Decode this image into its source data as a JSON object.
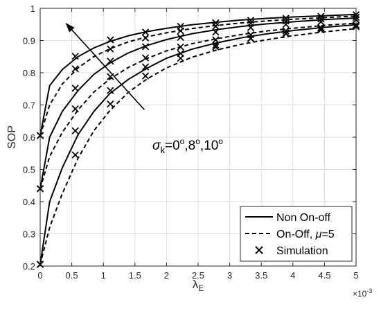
{
  "chart_data": {
    "type": "line",
    "xlabel": "λ",
    "xlabel_sub": "E",
    "ylabel": "SOP",
    "x_exponent": "×10",
    "x_exponent_power": "-3",
    "xlim": [
      0,
      5
    ],
    "ylim": [
      0.2,
      1
    ],
    "xticks": [
      0,
      0.5,
      1,
      1.5,
      2,
      2.5,
      3,
      3.5,
      4,
      4.5,
      5
    ],
    "xtick_labels": [
      "0",
      "0.5",
      "1",
      "1.5",
      "2",
      "2.5",
      "3",
      "3.5",
      "4",
      "4.5",
      "5"
    ],
    "yticks": [
      0.2,
      0.3,
      0.4,
      0.5,
      0.6,
      0.7,
      0.8,
      0.9,
      1
    ],
    "ytick_labels": [
      "0.2",
      "0.3",
      "0.4",
      "0.5",
      "0.6",
      "0.7",
      "0.8",
      "0.9",
      "1"
    ],
    "grid": true,
    "legend_position": "bottom-right",
    "legend": [
      {
        "label": "Non On-off",
        "style": "solid"
      },
      {
        "label": "On-Off, ",
        "label_math": "μ",
        "label_tail": "=5",
        "style": "dashed"
      },
      {
        "label": "Simulation",
        "style": "marker"
      }
    ],
    "annotation": {
      "sigma": "σ",
      "sub": "k",
      "text_parts": [
        "=0",
        "o",
        ",8",
        "o",
        ",10",
        "o"
      ],
      "arrow_from": [
        1.65,
        0.685
      ],
      "arrow_to": [
        0.4,
        0.955
      ]
    },
    "marker_x": [
      0,
      0.556,
      1.111,
      1.667,
      2.222,
      2.778,
      3.333,
      3.889,
      4.444,
      5
    ],
    "series": [
      {
        "style": "solid",
        "x": [
          0,
          0.15,
          0.35,
          0.6,
          0.85,
          1.1,
          1.4,
          1.7,
          2.0,
          2.4,
          2.8,
          3.2,
          3.6,
          4.0,
          4.5,
          5
        ],
        "y": [
          0.605,
          0.76,
          0.81,
          0.85,
          0.877,
          0.897,
          0.915,
          0.928,
          0.938,
          0.949,
          0.957,
          0.964,
          0.969,
          0.973,
          0.977,
          0.981
        ],
        "marker_y": [
          0.605,
          0.851,
          0.902,
          0.926,
          0.944,
          0.955,
          0.963,
          0.969,
          0.975,
          0.98
        ]
      },
      {
        "style": "dashed",
        "x": [
          0,
          0.15,
          0.35,
          0.6,
          0.85,
          1.1,
          1.4,
          1.7,
          2.0,
          2.4,
          2.8,
          3.2,
          3.6,
          4.0,
          4.5,
          5
        ],
        "y": [
          0.605,
          0.7,
          0.765,
          0.815,
          0.85,
          0.874,
          0.896,
          0.912,
          0.924,
          0.937,
          0.947,
          0.955,
          0.961,
          0.966,
          0.971,
          0.976
        ],
        "marker_y": [
          0.605,
          0.812,
          0.874,
          0.908,
          0.93,
          0.944,
          0.954,
          0.961,
          0.967,
          0.972
        ]
      },
      {
        "style": "solid",
        "x": [
          0,
          0.15,
          0.35,
          0.6,
          0.85,
          1.1,
          1.4,
          1.7,
          2.0,
          2.4,
          2.8,
          3.2,
          3.6,
          4.0,
          4.5,
          5
        ],
        "y": [
          0.44,
          0.6,
          0.68,
          0.745,
          0.795,
          0.83,
          0.862,
          0.885,
          0.903,
          0.921,
          0.934,
          0.944,
          0.952,
          0.958,
          0.965,
          0.97
        ],
        "marker_y": [
          0.44,
          0.752,
          0.836,
          0.881,
          0.91,
          0.926,
          0.94,
          0.95,
          0.958,
          0.965
        ]
      },
      {
        "style": "dashed",
        "x": [
          0,
          0.15,
          0.35,
          0.6,
          0.85,
          1.1,
          1.4,
          1.7,
          2.0,
          2.4,
          2.8,
          3.2,
          3.6,
          4.0,
          4.5,
          5
        ],
        "y": [
          0.44,
          0.54,
          0.615,
          0.685,
          0.74,
          0.78,
          0.817,
          0.845,
          0.868,
          0.89,
          0.906,
          0.919,
          0.93,
          0.938,
          0.947,
          0.954
        ],
        "marker_y": [
          0.44,
          0.688,
          0.788,
          0.846,
          0.88,
          0.902,
          0.918,
          0.93,
          0.94,
          0.948
        ]
      },
      {
        "style": "solid",
        "x": [
          0,
          0.15,
          0.35,
          0.6,
          0.85,
          1.1,
          1.4,
          1.7,
          2.0,
          2.4,
          2.8,
          3.2,
          3.6,
          4.0,
          4.5,
          5
        ],
        "y": [
          0.205,
          0.4,
          0.505,
          0.608,
          0.68,
          0.735,
          0.78,
          0.815,
          0.845,
          0.873,
          0.893,
          0.909,
          0.921,
          0.931,
          0.941,
          0.949
        ],
        "marker_y": [
          0.205,
          0.62,
          0.745,
          0.818,
          0.86,
          0.886,
          0.907,
          0.921,
          0.933,
          0.943
        ]
      },
      {
        "style": "dashed",
        "x": [
          0,
          0.15,
          0.35,
          0.6,
          0.85,
          1.1,
          1.4,
          1.7,
          2.0,
          2.4,
          2.8,
          3.2,
          3.6,
          4.0,
          4.5,
          5
        ],
        "y": [
          0.205,
          0.32,
          0.425,
          0.535,
          0.62,
          0.682,
          0.74,
          0.782,
          0.815,
          0.848,
          0.871,
          0.889,
          0.903,
          0.915,
          0.927,
          0.937
        ],
        "marker_y": [
          0.205,
          0.545,
          0.703,
          0.79,
          0.845,
          0.88,
          0.906,
          0.923,
          0.936,
          0.946
        ]
      }
    ]
  }
}
